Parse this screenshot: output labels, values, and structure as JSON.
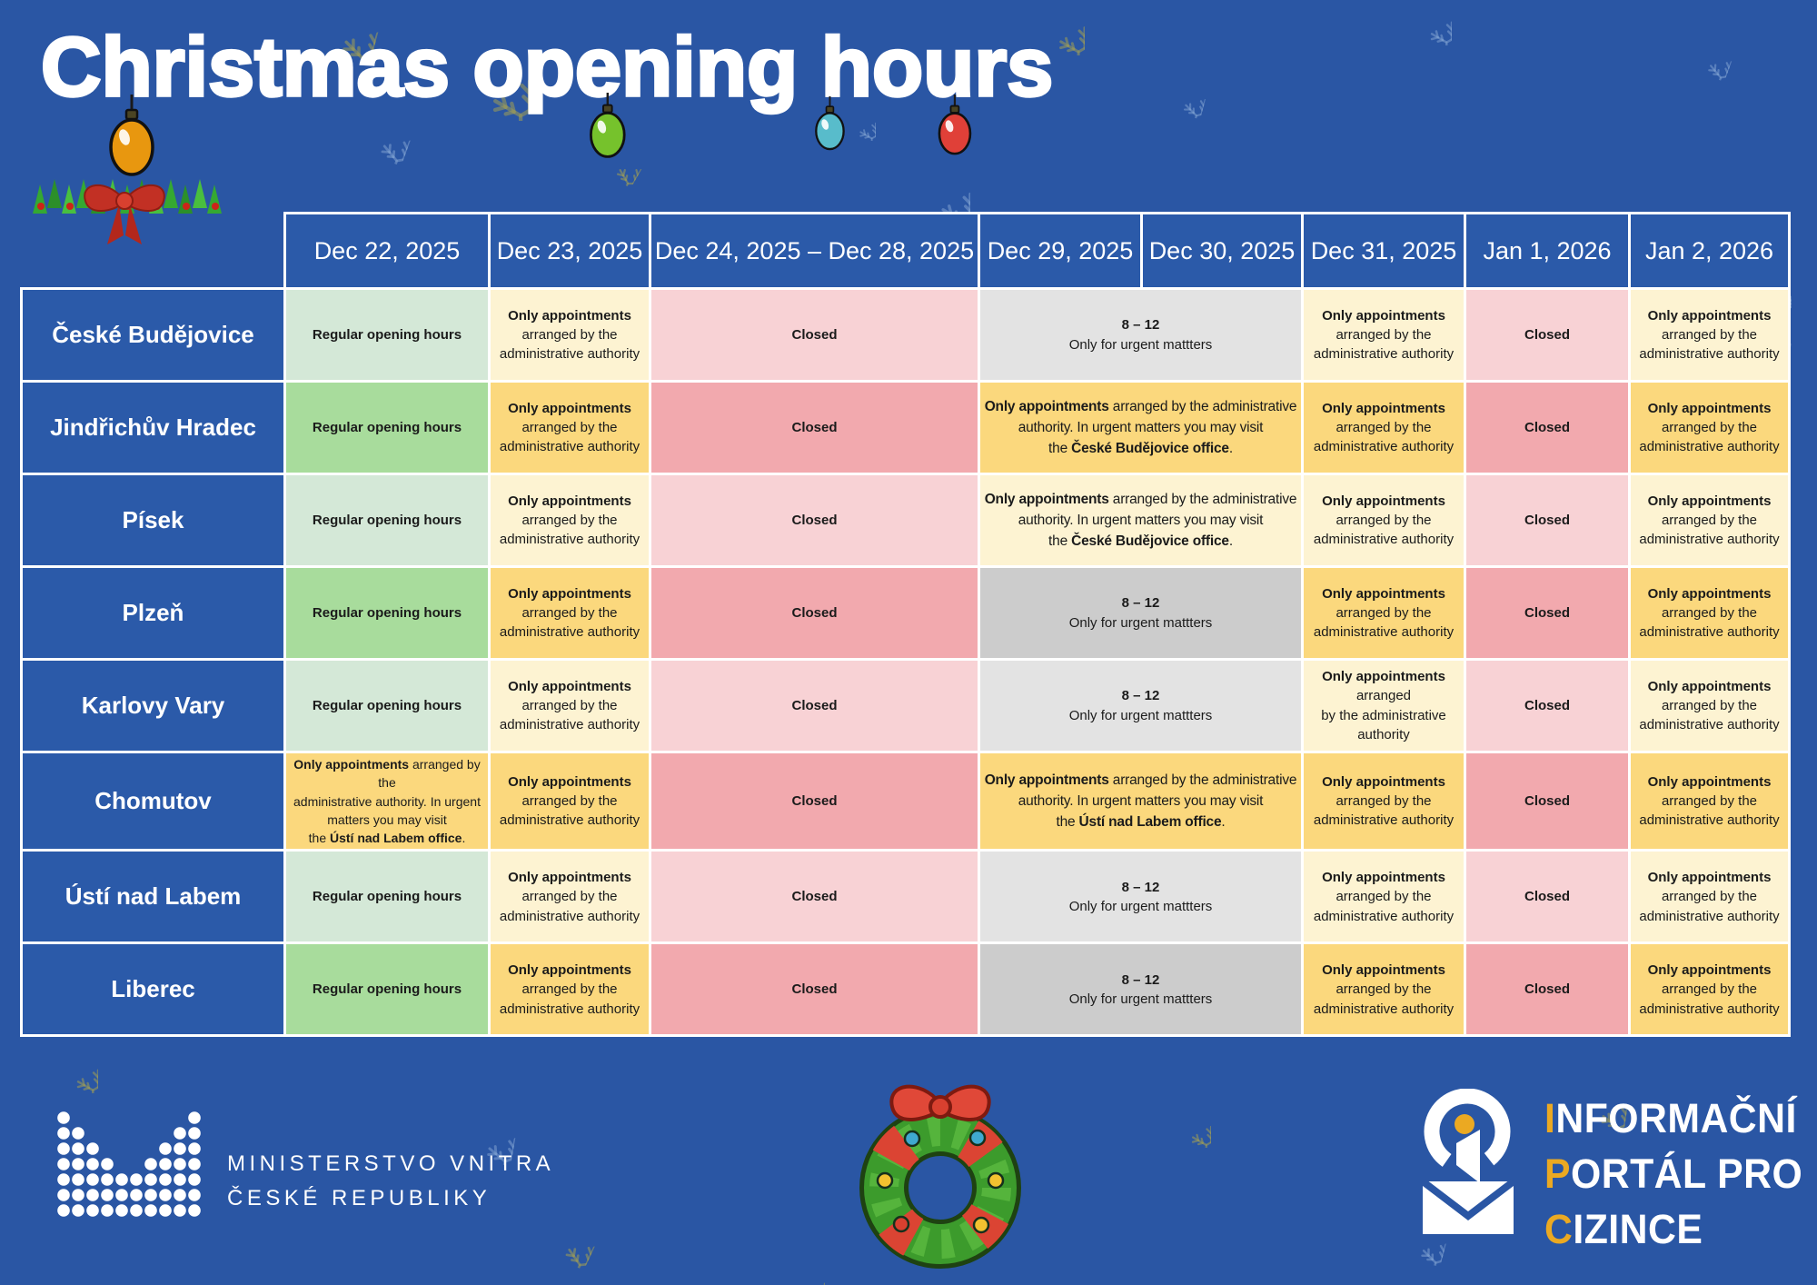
{
  "page": {
    "title": "Christmas opening hours",
    "background_color": "#2A56A4"
  },
  "table": {
    "date_headers": [
      "Dec 22, 2025",
      "Dec 23, 2025",
      "Dec 24, 2025 – Dec 28, 2025",
      "Dec 29, 2025",
      "Dec 30, 2025",
      "Dec 31, 2025",
      "Jan 1, 2026",
      "Jan 2, 2026"
    ],
    "cell_colors": {
      "green_light": "#D4E8D7",
      "green_dark": "#A8DC9C",
      "yellow_light": "#FDF3D2",
      "yellow_dark": "#FBD87D",
      "pink_light": "#F8D2D5",
      "pink_dark": "#F2A9AE",
      "gray_light": "#E3E3E3",
      "gray_dark": "#CCCCCC",
      "header_blue": "#2B5AA9",
      "text_dark": "#1B1B1B",
      "border_white": "#FFFFFF"
    },
    "cell_templates": {
      "regular": {
        "size": "normal",
        "lines": [
          [
            {
              "t": "Regular opening hours",
              "b": true
            }
          ]
        ]
      },
      "closed": {
        "size": "normal",
        "lines": [
          [
            {
              "t": "Closed",
              "b": true
            }
          ]
        ]
      },
      "appointments3": {
        "size": "normal",
        "lines": [
          [
            {
              "t": "Only appointments",
              "b": true
            }
          ],
          [
            {
              "t": "arranged by the"
            }
          ],
          [
            {
              "t": "administrative authority"
            }
          ]
        ]
      },
      "appointments4": {
        "size": "normal",
        "lines": [
          [
            {
              "t": "Only appointments",
              "b": true
            }
          ],
          [
            {
              "t": "arranged"
            }
          ],
          [
            {
              "t": "by the administrative"
            }
          ],
          [
            {
              "t": "authority"
            }
          ]
        ]
      },
      "urgent812": {
        "size": "normal",
        "lines": [
          [
            {
              "t": "8 – 12",
              "b": true
            }
          ],
          [
            {
              "t": "Only for urgent mattters"
            }
          ]
        ]
      },
      "visit_cb": {
        "size": "long",
        "lines": [
          [
            {
              "t": "Only appointments",
              "b": true
            },
            {
              "t": " arranged by the administrative"
            }
          ],
          [
            {
              "t": "authority. In urgent matters you may visit"
            }
          ],
          [
            {
              "t": "the "
            },
            {
              "t": "České Budějovice office",
              "b": true
            },
            {
              "t": "."
            }
          ]
        ]
      },
      "visit_ul": {
        "size": "long",
        "lines": [
          [
            {
              "t": "Only appointments",
              "b": true
            },
            {
              "t": " arranged by the administrative"
            }
          ],
          [
            {
              "t": "authority. In urgent matters you may visit"
            }
          ],
          [
            {
              "t": "the "
            },
            {
              "t": "Ústí nad Labem office",
              "b": true
            },
            {
              "t": "."
            }
          ]
        ]
      },
      "visit_ul_narrow": {
        "size": "narrow",
        "lines": [
          [
            {
              "t": "Only appointments",
              "b": true
            },
            {
              "t": " arranged by the"
            }
          ],
          [
            {
              "t": "administrative authority. In urgent"
            }
          ],
          [
            {
              "t": "matters you may visit"
            }
          ],
          [
            {
              "t": "the "
            },
            {
              "t": "Ústí nad Labem office",
              "b": true
            },
            {
              "t": "."
            }
          ]
        ]
      }
    },
    "rows": [
      {
        "city": "České Budějovice",
        "shade": "light",
        "cells": [
          {
            "bg": "green",
            "tpl": "regular"
          },
          {
            "bg": "yellow",
            "tpl": "appointments3"
          },
          {
            "bg": "pink",
            "tpl": "closed"
          },
          {
            "bg": "gray",
            "tpl": "urgent812",
            "colspan": 2
          },
          {
            "bg": "yellow",
            "tpl": "appointments3"
          },
          {
            "bg": "pink",
            "tpl": "closed"
          },
          {
            "bg": "yellow",
            "tpl": "appointments3"
          }
        ]
      },
      {
        "city": "Jindřichův Hradec",
        "shade": "dark",
        "cells": [
          {
            "bg": "green",
            "tpl": "regular"
          },
          {
            "bg": "yellow",
            "tpl": "appointments3"
          },
          {
            "bg": "pink",
            "tpl": "closed"
          },
          {
            "bg": "yellow",
            "tpl": "visit_cb",
            "colspan": 2
          },
          {
            "bg": "yellow",
            "tpl": "appointments3"
          },
          {
            "bg": "pink",
            "tpl": "closed"
          },
          {
            "bg": "yellow",
            "tpl": "appointments3"
          }
        ]
      },
      {
        "city": "Písek",
        "shade": "light",
        "cells": [
          {
            "bg": "green",
            "tpl": "regular"
          },
          {
            "bg": "yellow",
            "tpl": "appointments3"
          },
          {
            "bg": "pink",
            "tpl": "closed"
          },
          {
            "bg": "yellow",
            "tpl": "visit_cb",
            "colspan": 2
          },
          {
            "bg": "yellow",
            "tpl": "appointments3"
          },
          {
            "bg": "pink",
            "tpl": "closed"
          },
          {
            "bg": "yellow",
            "tpl": "appointments3"
          }
        ]
      },
      {
        "city": "Plzeň",
        "shade": "dark",
        "cells": [
          {
            "bg": "green",
            "tpl": "regular"
          },
          {
            "bg": "yellow",
            "tpl": "appointments3"
          },
          {
            "bg": "pink",
            "tpl": "closed"
          },
          {
            "bg": "gray",
            "tpl": "urgent812",
            "colspan": 2
          },
          {
            "bg": "yellow",
            "tpl": "appointments3"
          },
          {
            "bg": "pink",
            "tpl": "closed"
          },
          {
            "bg": "yellow",
            "tpl": "appointments3"
          }
        ]
      },
      {
        "city": "Karlovy Vary",
        "shade": "light",
        "cells": [
          {
            "bg": "green",
            "tpl": "regular"
          },
          {
            "bg": "yellow",
            "tpl": "appointments3"
          },
          {
            "bg": "pink",
            "tpl": "closed"
          },
          {
            "bg": "gray",
            "tpl": "urgent812",
            "colspan": 2
          },
          {
            "bg": "yellow",
            "tpl": "appointments4"
          },
          {
            "bg": "pink",
            "tpl": "closed"
          },
          {
            "bg": "yellow",
            "tpl": "appointments3"
          }
        ]
      },
      {
        "city": "Chomutov",
        "shade": "dark",
        "cells": [
          {
            "bg": "yellow",
            "tpl": "visit_ul_narrow"
          },
          {
            "bg": "yellow",
            "tpl": "appointments3"
          },
          {
            "bg": "pink",
            "tpl": "closed"
          },
          {
            "bg": "yellow",
            "tpl": "visit_ul",
            "colspan": 2
          },
          {
            "bg": "yellow",
            "tpl": "appointments3"
          },
          {
            "bg": "pink",
            "tpl": "closed"
          },
          {
            "bg": "yellow",
            "tpl": "appointments3"
          }
        ]
      },
      {
        "city": "Ústí nad Labem",
        "shade": "light",
        "cells": [
          {
            "bg": "green",
            "tpl": "regular"
          },
          {
            "bg": "yellow",
            "tpl": "appointments3"
          },
          {
            "bg": "pink",
            "tpl": "closed"
          },
          {
            "bg": "gray",
            "tpl": "urgent812",
            "colspan": 2
          },
          {
            "bg": "yellow",
            "tpl": "appointments3"
          },
          {
            "bg": "pink",
            "tpl": "closed"
          },
          {
            "bg": "yellow",
            "tpl": "appointments3"
          }
        ]
      },
      {
        "city": "Liberec",
        "shade": "dark",
        "cells": [
          {
            "bg": "green",
            "tpl": "regular"
          },
          {
            "bg": "yellow",
            "tpl": "appointments3"
          },
          {
            "bg": "pink",
            "tpl": "closed"
          },
          {
            "bg": "gray",
            "tpl": "urgent812",
            "colspan": 2
          },
          {
            "bg": "yellow",
            "tpl": "appointments3"
          },
          {
            "bg": "pink",
            "tpl": "closed"
          },
          {
            "bg": "yellow",
            "tpl": "appointments3"
          }
        ]
      }
    ]
  },
  "decorations": {
    "ornaments": [
      {
        "name": "orange-bauble",
        "color": "#E8970F"
      },
      {
        "name": "green-bauble",
        "color": "#76C22C"
      },
      {
        "name": "teal-bauble",
        "color": "#58BCCB"
      },
      {
        "name": "red-bauble",
        "color": "#E04038"
      }
    ],
    "snowflake_colors": {
      "blue": "rgba(126,160,208,0.55)",
      "tan": "rgba(150,152,92,0.6)"
    }
  },
  "footer": {
    "ministry_logo": {
      "line1": "MINISTERSTVO VNITRA",
      "line2": "ČESKÉ REPUBLIKY"
    },
    "ipc_logo": {
      "accent_color": "#EBA922",
      "lines": [
        {
          "accent": "I",
          "rest": "NFORMAČNÍ"
        },
        {
          "accent": "P",
          "rest": "ORTÁL PRO"
        },
        {
          "accent": "C",
          "rest": "IZINCE"
        }
      ]
    }
  }
}
